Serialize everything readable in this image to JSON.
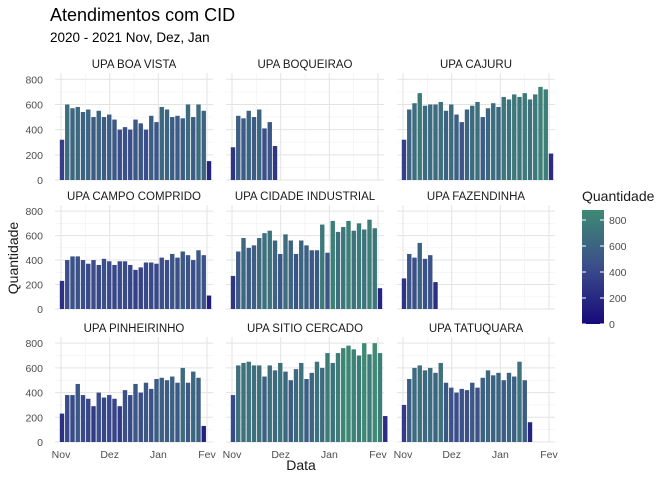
{
  "chart_data": {
    "type": "bar",
    "title": "Atendimentos com CID",
    "subtitle": "2020 - 2021 Nov, Dez, Jan",
    "xlabel": "Data",
    "ylabel": "Quantidade",
    "ylim": [
      0,
      850
    ],
    "y_ticks": [
      0,
      200,
      400,
      600,
      800
    ],
    "x_ticks": [
      "Nov",
      "Dez",
      "Jan",
      "Fev"
    ],
    "legend": {
      "title": "Quantidade",
      "ticks": [
        0,
        200,
        400,
        600,
        800
      ],
      "low_color": "#170a7a",
      "mid_color": "#3b4d8a",
      "high_color": "#3e8a73",
      "placement": "right"
    },
    "grid": true,
    "facets": [
      {
        "name": "UPA BOA VISTA",
        "values": [
          320,
          600,
          570,
          580,
          540,
          560,
          500,
          550,
          500,
          520,
          480,
          400,
          420,
          400,
          480,
          450,
          400,
          510,
          460,
          580,
          560,
          500,
          510,
          490,
          600,
          500,
          600,
          550,
          150
        ]
      },
      {
        "name": "UPA BOQUEIRAO",
        "values": [
          260,
          510,
          490,
          550,
          500,
          560,
          410,
          460,
          270
        ]
      },
      {
        "name": "UPA CAJURU",
        "values": [
          320,
          560,
          610,
          690,
          590,
          600,
          600,
          620,
          550,
          600,
          520,
          460,
          560,
          590,
          620,
          500,
          570,
          610,
          580,
          660,
          640,
          680,
          660,
          690,
          640,
          680,
          740,
          720,
          210
        ]
      },
      {
        "name": "UPA CAMPO COMPRIDO",
        "values": [
          230,
          400,
          430,
          430,
          400,
          370,
          400,
          360,
          410,
          390,
          360,
          390,
          390,
          360,
          320,
          340,
          380,
          380,
          370,
          420,
          400,
          450,
          420,
          470,
          440,
          400,
          480,
          440,
          110
        ]
      },
      {
        "name": "UPA CIDADE INDUSTRIAL",
        "values": [
          270,
          470,
          580,
          500,
          520,
          580,
          620,
          640,
          560,
          450,
          610,
          560,
          450,
          560,
          520,
          480,
          480,
          690,
          460,
          720,
          630,
          670,
          720,
          640,
          700,
          650,
          730,
          660,
          170
        ]
      },
      {
        "name": "UPA FAZENDINHA",
        "values": [
          250,
          450,
          420,
          540,
          410,
          440,
          220
        ]
      },
      {
        "name": "UPA PINHEIRINHO",
        "values": [
          230,
          380,
          380,
          470,
          380,
          350,
          290,
          400,
          360,
          380,
          350,
          290,
          420,
          380,
          470,
          400,
          480,
          430,
          510,
          520,
          500,
          530,
          480,
          600,
          480,
          570,
          520,
          130
        ]
      },
      {
        "name": "UPA SITIO CERCADO",
        "values": [
          380,
          620,
          640,
          650,
          620,
          620,
          530,
          620,
          580,
          640,
          570,
          500,
          590,
          640,
          510,
          560,
          650,
          600,
          720,
          640,
          720,
          760,
          780,
          750,
          700,
          800,
          710,
          800,
          720,
          210
        ]
      },
      {
        "name": "UPA TATUQUARA",
        "values": [
          300,
          510,
          600,
          620,
          580,
          600,
          560,
          640,
          480,
          440,
          400,
          430,
          420,
          480,
          440,
          520,
          580,
          540,
          560,
          500,
          560,
          530,
          650,
          500,
          160
        ]
      }
    ]
  }
}
